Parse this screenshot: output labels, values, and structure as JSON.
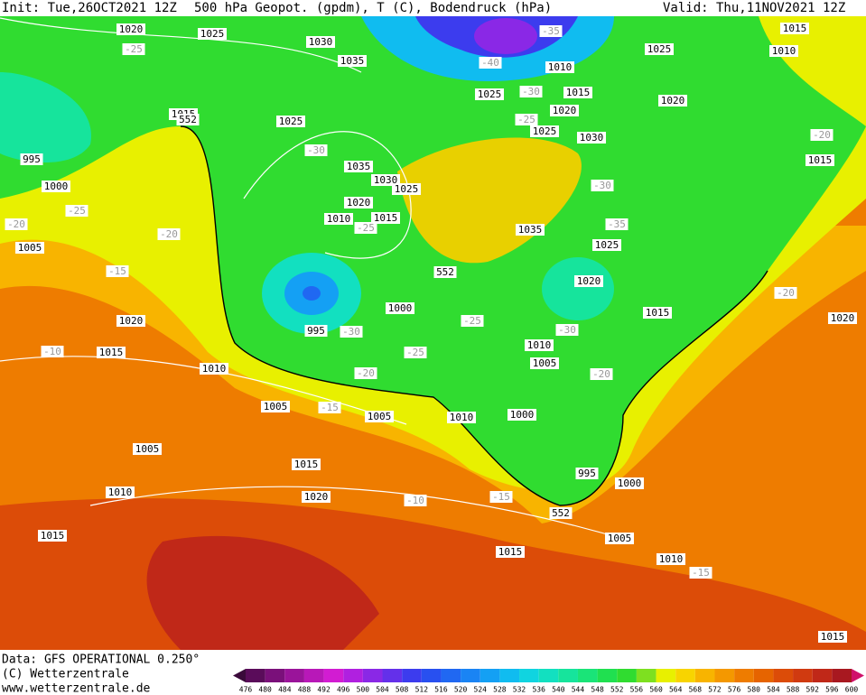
{
  "header": {
    "init": "Init: Tue,26OCT2021 12Z",
    "title": "500 hPa Geopot. (gpdm), T (C), Bodendruck (hPa)",
    "valid": "Valid: Thu,11NOV2021 12Z"
  },
  "footer": {
    "data": "Data: GFS OPERATIONAL 0.250°",
    "copyright": "(C) Wetterzentrale",
    "url": "www.wetterzentrale.de"
  },
  "map_labels": [
    "1020",
    "1025",
    "1030",
    "1035",
    "-40",
    "-35",
    "1010",
    "1025",
    "1015",
    "1010",
    "1015",
    "1025",
    "1020",
    "1015",
    "1025",
    "1020",
    "995",
    "1000",
    "1035",
    "1030",
    "1025",
    "1020",
    "1010",
    "1015",
    "1030",
    "1025",
    "1015",
    "1005",
    "1035",
    "1025",
    "1020",
    "1015",
    "1020",
    "1000",
    "995",
    "1010",
    "1005",
    "1015",
    "1010",
    "1005",
    "1005",
    "1010",
    "1000",
    "1005",
    "1015",
    "1010",
    "1020",
    "995",
    "1000",
    "1015",
    "1005",
    "1015",
    "1010",
    "1015",
    "1020",
    "552",
    "552",
    "552",
    "-25",
    "-30",
    "-25",
    "-30",
    "-25",
    "-20",
    "-15",
    "-20",
    "-25",
    "-30",
    "-35",
    "-25",
    "-30",
    "-30",
    "-25",
    "-20",
    "-20",
    "-15",
    "-10",
    "-10",
    "-15",
    "-15",
    "-20",
    "-20"
  ],
  "colorbar": {
    "values": [
      476,
      480,
      484,
      488,
      492,
      496,
      500,
      504,
      508,
      512,
      516,
      520,
      524,
      528,
      532,
      536,
      540,
      544,
      548,
      552,
      556,
      560,
      564,
      568,
      572,
      576,
      580,
      584,
      588,
      592,
      596,
      600
    ],
    "colors": [
      "#3a0a3a",
      "#5a0c5a",
      "#7a107a",
      "#9a149a",
      "#b818b8",
      "#d21cd2",
      "#b020e0",
      "#8a28e6",
      "#6430ea",
      "#3c3cee",
      "#2850f0",
      "#2068f2",
      "#1a84f4",
      "#14a0f4",
      "#10bcf0",
      "#10d4e0",
      "#12e0c0",
      "#16e49c",
      "#1ae478",
      "#20e050",
      "#30dc30",
      "#7ee020",
      "#e8f000",
      "#f8d400",
      "#f8b400",
      "#f49800",
      "#ee7c00",
      "#e66400",
      "#dc4c08",
      "#d03a10",
      "#c02818",
      "#a81820",
      "#d0106a"
    ]
  }
}
